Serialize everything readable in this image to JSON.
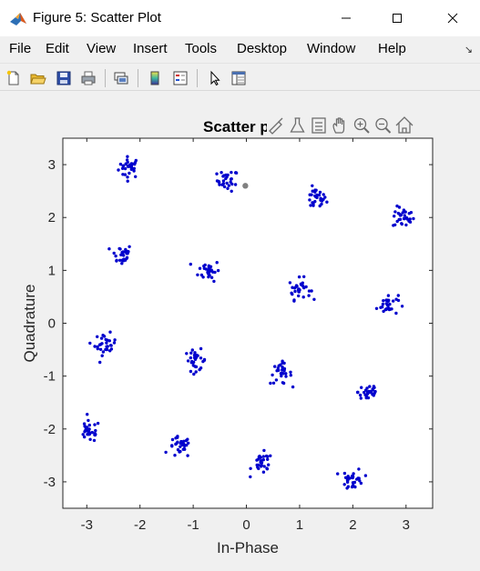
{
  "window": {
    "title": "Figure 5: Scatter Plot",
    "controls": {
      "minimize": "minimize",
      "maximize": "maximize",
      "close": "close"
    }
  },
  "menubar": {
    "items": [
      "File",
      "Edit",
      "View",
      "Insert",
      "Tools",
      "Desktop",
      "Window",
      "Help"
    ],
    "pin_glyph": "↘"
  },
  "toolbar": {
    "buttons": [
      "new-figure-icon",
      "open-file-icon",
      "save-icon",
      "print-icon",
      "link-plot-icon",
      "colorbar-icon",
      "legend-icon",
      "pointer-icon",
      "property-inspector-icon"
    ]
  },
  "axes_toolbar": {
    "title_fragment": "Scatter p",
    "buttons": [
      "brush-icon",
      "data-tips-icon",
      "plot-browser-icon",
      "pan-icon",
      "zoom-in-icon",
      "zoom-out-icon",
      "home-icon"
    ]
  },
  "colors": {
    "marker": "#0000cd",
    "highlight": "#808080",
    "axes_bg": "#ffffff",
    "axis_line": "#262626",
    "figure_bg": "#f0f0f0"
  },
  "chart_data": {
    "type": "scatter",
    "title": "Scatter p",
    "xlabel": "In-Phase",
    "ylabel": "Quadrature",
    "xlim": [
      -3.45,
      3.5
    ],
    "ylim": [
      -3.5,
      3.5
    ],
    "xticks": [
      -3,
      -2,
      -1,
      0,
      1,
      2,
      3
    ],
    "yticks": [
      -3,
      -2,
      -1,
      0,
      1,
      2,
      3
    ],
    "grid": false,
    "points_per_cluster": 30,
    "cluster_spread": 0.1,
    "series": [
      {
        "marker_color": "#0000cd",
        "cluster_centers": [
          [
            -2.2,
            2.95
          ],
          [
            -0.35,
            2.7
          ],
          [
            1.3,
            2.35
          ],
          [
            2.95,
            2.0
          ],
          [
            -2.35,
            1.3
          ],
          [
            -0.7,
            1.0
          ],
          [
            1.0,
            0.65
          ],
          [
            2.65,
            0.35
          ],
          [
            -2.65,
            -0.4
          ],
          [
            -0.95,
            -0.7
          ],
          [
            0.65,
            -0.95
          ],
          [
            2.3,
            -1.3
          ],
          [
            -2.95,
            -2.05
          ],
          [
            -1.25,
            -2.35
          ],
          [
            0.3,
            -2.65
          ],
          [
            2.0,
            -2.95
          ]
        ]
      }
    ],
    "highlighted_point": [
      -0.02,
      2.6
    ]
  }
}
